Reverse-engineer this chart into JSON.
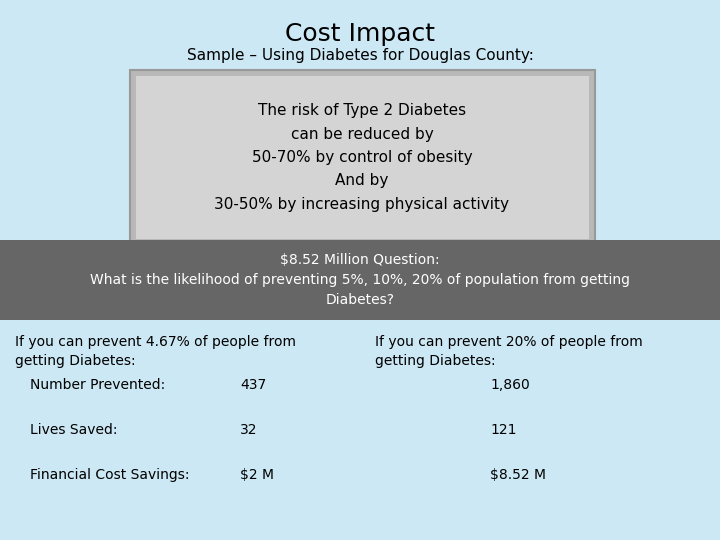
{
  "title": "Cost Impact",
  "subtitle": "Sample – Using Diabetes for Douglas County:",
  "background_color": "#cce8f4",
  "gray_box_text": "The risk of Type 2 Diabetes\ncan be reduced by\n50-70% by control of obesity\nAnd by\n30-50% by increasing physical activity",
  "gray_box_bg": "#c0c0c0",
  "gray_box_inner_bg": "#d4d4d4",
  "dark_box_text": "$8.52 Million Question:\nWhat is the likelihood of preventing 5%, 10%, 20% of population from getting\nDiabetes?",
  "dark_box_bg": "#666666",
  "dark_box_text_color": "#ffffff",
  "col1_header": "If you can prevent 4.67% of people from\ngetting Diabetes:",
  "col2_header": "If you can prevent 20% of people from\ngetting Diabetes:",
  "row_labels": [
    "Number Prevented:",
    "Lives Saved:",
    "Financial Cost Savings:"
  ],
  "col1_values": [
    "437",
    "32",
    "$2 M"
  ],
  "col2_values": [
    "1,860",
    "121",
    "$8.52 M"
  ],
  "text_color": "#000000",
  "title_fontsize": 18,
  "subtitle_fontsize": 11,
  "gray_text_fontsize": 11,
  "dark_text_fontsize": 10,
  "body_fontsize": 10
}
